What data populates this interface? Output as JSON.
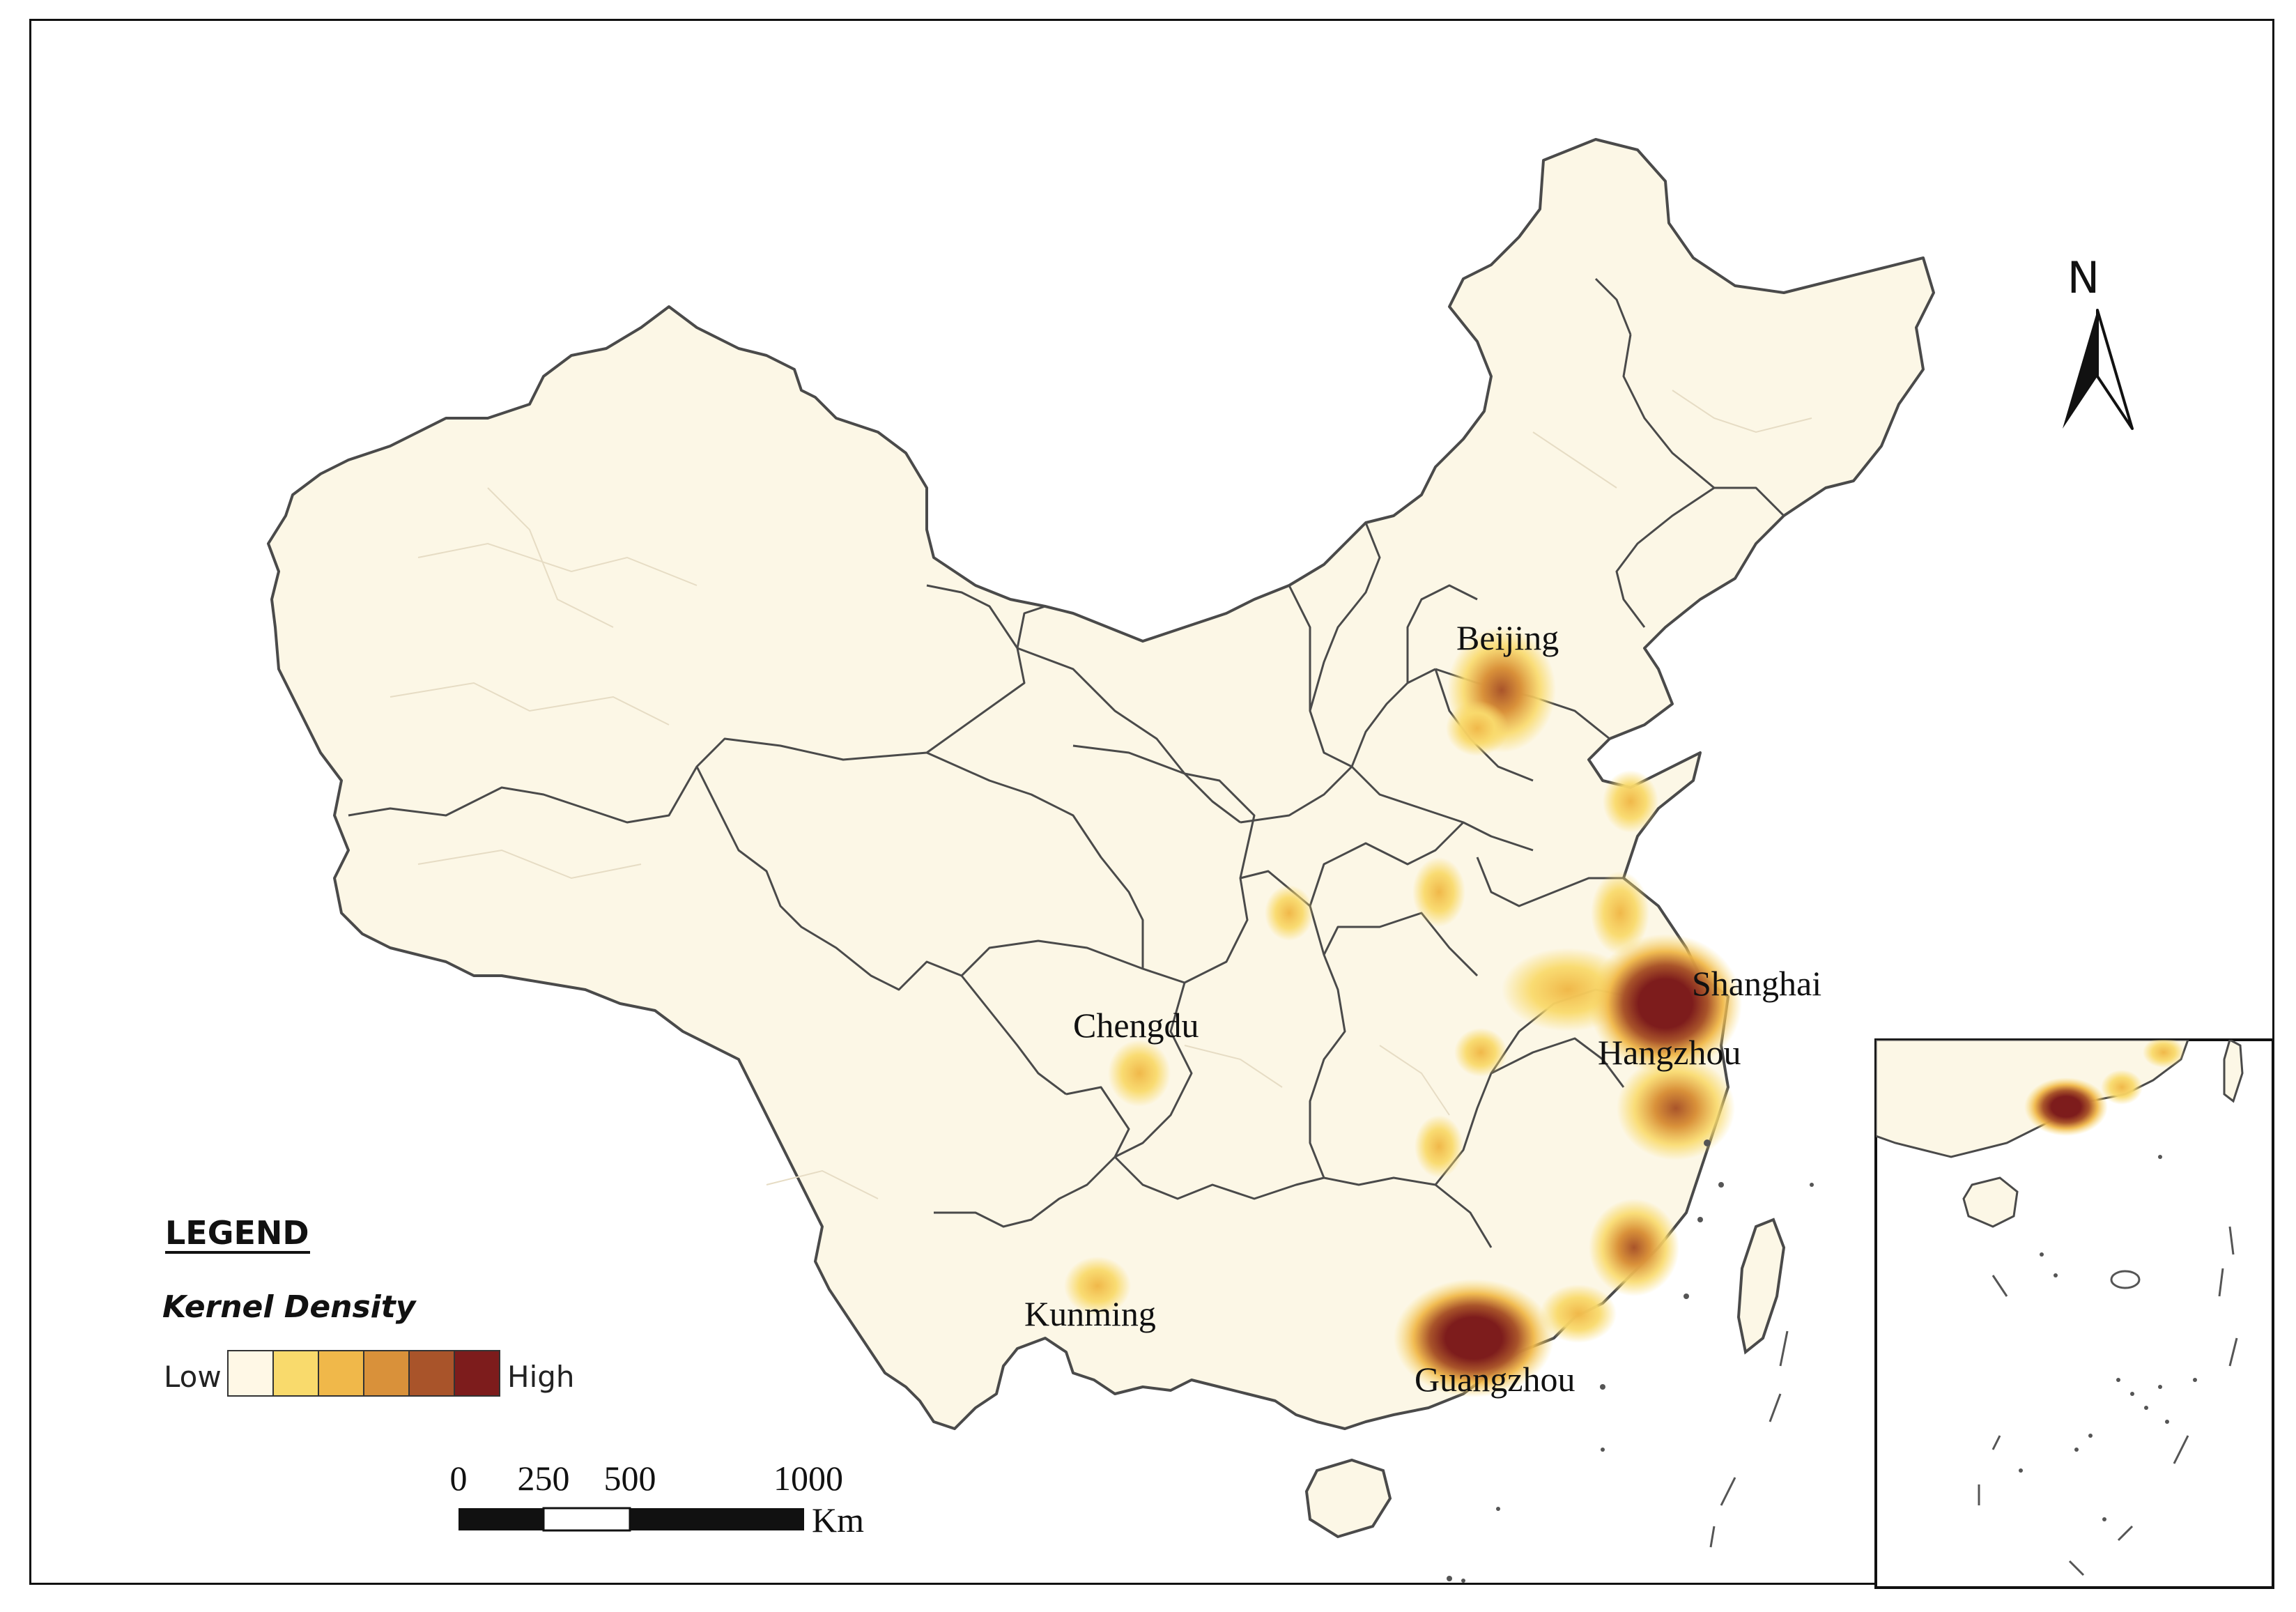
{
  "map": {
    "cities": [
      {
        "name": "Beijing",
        "density_level": 5
      },
      {
        "name": "Shanghai",
        "density_level": 6
      },
      {
        "name": "Hangzhou",
        "density_level": 4
      },
      {
        "name": "Chengdu",
        "density_level": 3
      },
      {
        "name": "Kunming",
        "density_level": 3
      },
      {
        "name": "Guangzhou",
        "density_level": 6
      }
    ],
    "north_arrow": {
      "label": "N",
      "icon": "north-arrow-icon"
    }
  },
  "legend": {
    "title": "LEGEND",
    "subtitle": "Kernel Density",
    "low_label": "Low",
    "high_label": "High",
    "colors": [
      "#FFF8E6",
      "#F9DA6C",
      "#F0B84A",
      "#D9913A",
      "#A9542A",
      "#7D1C1C"
    ]
  },
  "scale_bar": {
    "ticks": [
      "0",
      "250",
      "500",
      "1000"
    ],
    "unit": "Km"
  },
  "colors": {
    "land": "#FCF7E6",
    "border": "#4a4a4a",
    "frame": "#111111"
  }
}
